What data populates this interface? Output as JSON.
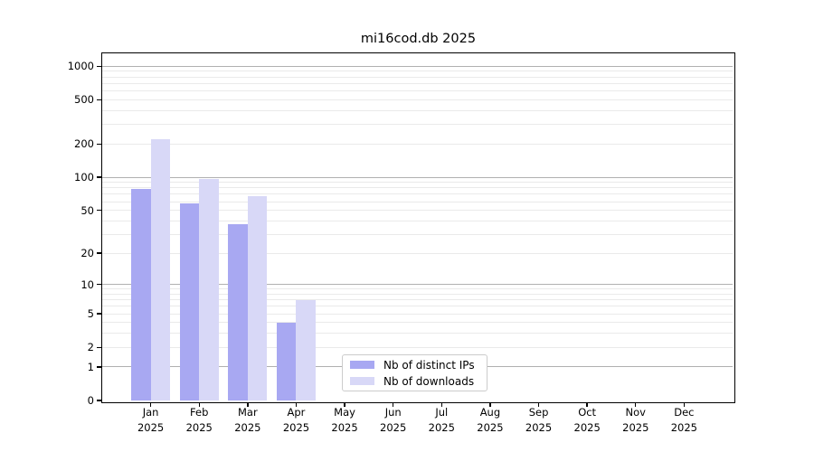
{
  "title": "mi16cod.db 2025",
  "colors": {
    "ips_bar": "#a8a8f2",
    "downloads_bar": "#d8d8f7",
    "grid_major": "#b0b0b0",
    "grid_minor": "#eaeaea",
    "legend_border": "#cccccc",
    "axis": "#000000"
  },
  "legend": {
    "items": [
      {
        "label": "Nb of distinct IPs",
        "color_key": "ips_bar"
      },
      {
        "label": "Nb of downloads",
        "color_key": "downloads_bar"
      }
    ]
  },
  "y_axis": {
    "tick_values": [
      0,
      1,
      2,
      5,
      10,
      20,
      50,
      100,
      200,
      500,
      1000
    ],
    "tick_labels": [
      "0",
      "1",
      "2",
      "5",
      "10",
      "20",
      "50",
      "100",
      "200",
      "500",
      "1000"
    ],
    "scale": "log10(1+x)",
    "minor_grid_values": [
      2,
      3,
      4,
      5,
      6,
      7,
      8,
      9,
      20,
      30,
      40,
      50,
      60,
      70,
      80,
      90,
      200,
      300,
      400,
      500,
      600,
      700,
      800,
      900
    ],
    "major_grid_values": [
      1,
      10,
      100,
      1000
    ]
  },
  "x_axis": {
    "tick_labels": [
      "Jan\n2025",
      "Feb\n2025",
      "Mar\n2025",
      "Apr\n2025",
      "May\n2025",
      "Jun\n2025",
      "Jul\n2025",
      "Aug\n2025",
      "Sep\n2025",
      "Oct\n2025",
      "Nov\n2025",
      "Dec\n2025"
    ]
  },
  "chart_data": {
    "type": "bar",
    "title": "mi16cod.db 2025",
    "xlabel": "",
    "ylabel": "",
    "categories": [
      "Jan 2025",
      "Feb 2025",
      "Mar 2025",
      "Apr 2025",
      "May 2025",
      "Jun 2025",
      "Jul 2025",
      "Aug 2025",
      "Sep 2025",
      "Oct 2025",
      "Nov 2025",
      "Dec 2025"
    ],
    "series": [
      {
        "name": "Nb of distinct IPs",
        "color": "#a8a8f2",
        "values": [
          78,
          58,
          37,
          4,
          0,
          0,
          0,
          0,
          0,
          0,
          0,
          0
        ]
      },
      {
        "name": "Nb of downloads",
        "color": "#d8d8f7",
        "values": [
          220,
          97,
          67,
          7,
          0,
          0,
          0,
          0,
          0,
          0,
          0,
          0
        ]
      }
    ],
    "y_scale": "log1p",
    "yticks": [
      0,
      1,
      2,
      5,
      10,
      20,
      50,
      100,
      200,
      500,
      1000
    ],
    "ylim_top_approx": 1300,
    "grid": "horizontal major+minor",
    "legend_position": "lower center"
  }
}
